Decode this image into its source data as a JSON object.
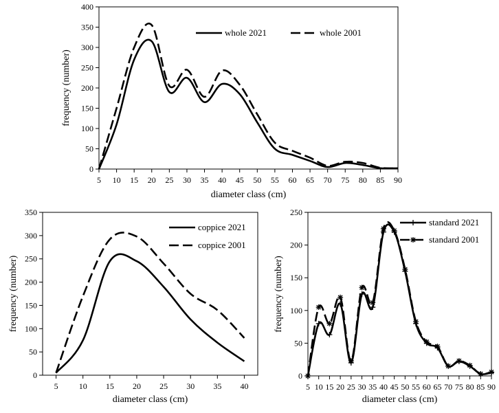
{
  "chart_data": [
    {
      "id": "top",
      "type": "line",
      "title": "",
      "xlabel": "diameter class (cm)",
      "ylabel": "frequency (number)",
      "x_ticks": [
        5,
        10,
        15,
        20,
        25,
        30,
        35,
        40,
        45,
        50,
        55,
        60,
        65,
        70,
        75,
        80,
        85,
        90
      ],
      "xlim": [
        5,
        90
      ],
      "ylim": [
        0,
        400
      ],
      "y_ticks": [
        0,
        50,
        100,
        150,
        200,
        250,
        300,
        350,
        400
      ],
      "legend_position": "top-right",
      "series": [
        {
          "name": "whole 2021",
          "style": "solid",
          "x": [
            5,
            10,
            15,
            20,
            25,
            30,
            35,
            40,
            45,
            50,
            55,
            60,
            65,
            70,
            75,
            80,
            85,
            90
          ],
          "values": [
            0,
            110,
            270,
            315,
            190,
            225,
            165,
            210,
            185,
            115,
            50,
            35,
            20,
            5,
            15,
            10,
            2,
            2
          ]
        },
        {
          "name": "whole 2001",
          "style": "dashed",
          "x": [
            5,
            10,
            15,
            20,
            25,
            30,
            35,
            40,
            45,
            50,
            55,
            60,
            65,
            70,
            75,
            80,
            85,
            90
          ],
          "values": [
            0,
            150,
            300,
            355,
            205,
            245,
            178,
            243,
            208,
            135,
            65,
            45,
            28,
            8,
            18,
            15,
            3,
            2
          ]
        }
      ]
    },
    {
      "id": "bottom-left",
      "type": "line",
      "title": "",
      "xlabel": "diameter class (cm)",
      "ylabel": "frequency (number)",
      "x_ticks": [
        5,
        10,
        15,
        20,
        25,
        30,
        35,
        40
      ],
      "xlim": [
        2.5,
        42.5
      ],
      "ylim": [
        0,
        350
      ],
      "y_ticks": [
        0,
        50,
        100,
        150,
        200,
        250,
        300,
        350
      ],
      "legend_position": "top-right",
      "series": [
        {
          "name": "coppice 2021",
          "style": "solid",
          "x": [
            5,
            10,
            15,
            20,
            25,
            30,
            35,
            40
          ],
          "values": [
            5,
            75,
            245,
            245,
            190,
            120,
            70,
            30
          ]
        },
        {
          "name": "coppice 2001",
          "style": "dashed",
          "x": [
            5,
            10,
            15,
            20,
            25,
            30,
            35,
            40
          ],
          "values": [
            5,
            170,
            292,
            298,
            240,
            175,
            140,
            80
          ]
        }
      ]
    },
    {
      "id": "bottom-right",
      "type": "line",
      "title": "",
      "xlabel": "diameter class (cm)",
      "ylabel": "frequency (number)",
      "x_ticks": [
        5,
        10,
        15,
        20,
        25,
        30,
        35,
        40,
        45,
        50,
        55,
        60,
        65,
        70,
        75,
        80,
        85,
        90
      ],
      "xlim": [
        5,
        90
      ],
      "ylim": [
        0,
        250
      ],
      "y_ticks": [
        0,
        50,
        100,
        150,
        200,
        250
      ],
      "legend_position": "top-right",
      "series": [
        {
          "name": "standard 2021",
          "style": "solid",
          "marker": "plus",
          "x": [
            5,
            10,
            15,
            20,
            25,
            30,
            35,
            40,
            45,
            50,
            55,
            60,
            65,
            70,
            75,
            80,
            85,
            90
          ],
          "values": [
            0,
            80,
            63,
            110,
            20,
            125,
            105,
            220,
            220,
            160,
            80,
            50,
            43,
            15,
            22,
            15,
            3,
            5
          ]
        },
        {
          "name": "standard 2001",
          "style": "dashed",
          "marker": "asterisk",
          "x": [
            5,
            10,
            15,
            20,
            25,
            30,
            35,
            40,
            45,
            50,
            55,
            60,
            65,
            70,
            75,
            80,
            85,
            90
          ],
          "values": [
            0,
            105,
            80,
            120,
            23,
            135,
            112,
            225,
            222,
            163,
            83,
            52,
            45,
            15,
            23,
            16,
            3,
            6
          ]
        }
      ]
    }
  ]
}
